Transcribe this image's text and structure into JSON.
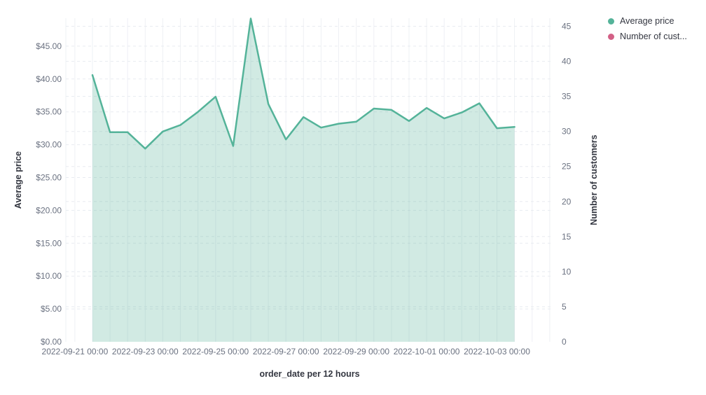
{
  "legend": {
    "position": "top-right",
    "items": [
      {
        "label": "Average price",
        "color": "#54B399"
      },
      {
        "label": "Number of cust...",
        "color": "#D36086"
      }
    ]
  },
  "chart_data": {
    "type": "area",
    "title": "",
    "grid": true,
    "legend_position": "right",
    "x_axis": {
      "label": "order_date per 12 hours",
      "interval": "12 hours",
      "tick_labels": [
        "2022-09-21 00:00",
        "2022-09-23 00:00",
        "2022-09-25 00:00",
        "2022-09-27 00:00",
        "2022-09-29 00:00",
        "2022-10-01 00:00",
        "2022-10-03 00:00"
      ]
    },
    "y_axis_left": {
      "label": "Average price",
      "format": "currency-USD",
      "tick_labels": [
        "$0.00",
        "$5.00",
        "$10.00",
        "$15.00",
        "$20.00",
        "$25.00",
        "$30.00",
        "$35.00",
        "$40.00",
        "$45.00"
      ],
      "range": [
        0,
        49.3
      ]
    },
    "y_axis_right": {
      "label": "Number of customers",
      "tick_labels": [
        "0",
        "5",
        "10",
        "15",
        "20",
        "25",
        "30",
        "35",
        "40",
        "45"
      ],
      "range": [
        0,
        46
      ]
    },
    "series": [
      {
        "name": "Average price",
        "type": "area",
        "axis": "left",
        "color": "#54B399",
        "fill_opacity": 0.27,
        "x": [
          "2022-09-21 12:00",
          "2022-09-22 00:00",
          "2022-09-22 12:00",
          "2022-09-23 00:00",
          "2022-09-23 12:00",
          "2022-09-24 00:00",
          "2022-09-24 12:00",
          "2022-09-25 00:00",
          "2022-09-25 12:00",
          "2022-09-26 00:00",
          "2022-09-26 12:00",
          "2022-09-27 00:00",
          "2022-09-27 12:00",
          "2022-09-28 00:00",
          "2022-09-28 12:00",
          "2022-09-29 00:00",
          "2022-09-29 12:00",
          "2022-09-30 00:00",
          "2022-09-30 12:00",
          "2022-10-01 00:00",
          "2022-10-01 12:00",
          "2022-10-02 00:00",
          "2022-10-02 12:00",
          "2022-10-03 00:00",
          "2022-10-03 12:00"
        ],
        "values": [
          40.6,
          31.9,
          31.9,
          29.4,
          32.0,
          33.0,
          35.0,
          37.3,
          29.8,
          49.2,
          36.2,
          30.8,
          34.2,
          32.6,
          33.2,
          33.5,
          35.5,
          35.3,
          33.6,
          35.6,
          34.0,
          34.9,
          36.3,
          32.5,
          32.7
        ]
      },
      {
        "name": "Number of customers",
        "type": "line",
        "axis": "right",
        "color": "#D36086",
        "x": [],
        "values": []
      }
    ]
  }
}
